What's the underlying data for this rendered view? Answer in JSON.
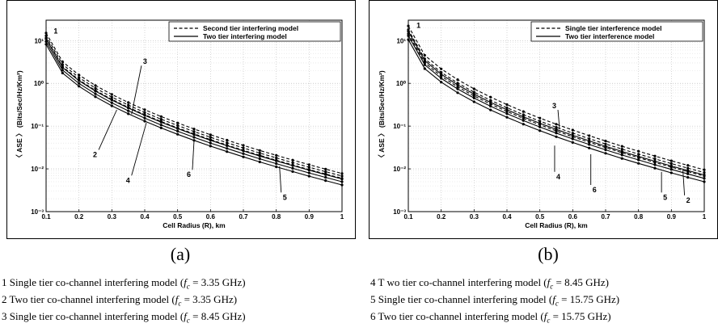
{
  "chart_data": [
    {
      "type": "line",
      "panel": "a",
      "caption": "(a)",
      "xlabel": "Cell Radius (R), km",
      "ylabel": "〈 ASE 〉 (Bits/Sec/Hz/Km²)",
      "x_scale": "linear",
      "y_scale": "log",
      "xlim": [
        0.1,
        1
      ],
      "ylim": [
        0.001,
        30
      ],
      "x_ticks": [
        "0.1",
        "0.2",
        "0.3",
        "0.4",
        "0.5",
        "0.6",
        "0.7",
        "0.8",
        "0.9",
        "1"
      ],
      "y_ticks": [
        "10⁻³",
        "10⁻²",
        "10⁻¹",
        "10⁰",
        "10¹"
      ],
      "grid": true,
      "legend_position": "top-right",
      "legend": [
        {
          "label": "Second tier interfering model",
          "style": "dashed"
        },
        {
          "label": "Two tier interfering model",
          "style": "solid"
        }
      ],
      "x": [
        0.1,
        0.15,
        0.2,
        0.25,
        0.3,
        0.35,
        0.4,
        0.45,
        0.5,
        0.55,
        0.6,
        0.65,
        0.7,
        0.75,
        0.8,
        0.85,
        0.9,
        0.95,
        1.0
      ],
      "series": [
        {
          "style": "dashed",
          "y0": 15.0,
          "y1": 0.0078
        },
        {
          "style": "solid",
          "y0": 11.0,
          "y1": 0.0058
        },
        {
          "style": "dashed",
          "y0": 13.0,
          "y1": 0.0068
        },
        {
          "style": "solid",
          "y0": 9.5,
          "y1": 0.005
        },
        {
          "style": "dashed",
          "y0": 11.5,
          "y1": 0.006
        },
        {
          "style": "solid",
          "y0": 8.2,
          "y1": 0.0042
        }
      ],
      "curve_labels": [
        {
          "text": "1",
          "x": 0.115,
          "y": 13.5,
          "tx": 0.118,
          "ty": 13.5
        },
        {
          "text": "2",
          "x": 0.315,
          "y": 0.24,
          "tx": 0.26,
          "ty": 0.028
        },
        {
          "text": "3",
          "x": 0.36,
          "y": 0.19,
          "tx": 0.39,
          "ty": 2.6
        },
        {
          "text": "4",
          "x": 0.405,
          "y": 0.12,
          "tx": 0.36,
          "ty": 0.007
        },
        {
          "text": "6",
          "x": 0.55,
          "y": 0.046,
          "tx": 0.545,
          "ty": 0.0095
        },
        {
          "text": "5",
          "x": 0.81,
          "y": 0.0115,
          "tx": 0.815,
          "ty": 0.0028
        }
      ]
    },
    {
      "type": "line",
      "panel": "b",
      "caption": "(b)",
      "xlabel": "Cell Radius (R), km",
      "ylabel": "〈 ASE 〉 (Bits/Sec/Hz/Km²)",
      "x_scale": "linear",
      "y_scale": "log",
      "xlim": [
        0.1,
        1
      ],
      "ylim": [
        0.001,
        30
      ],
      "x_ticks": [
        "0.1",
        "0.2",
        "0.3",
        "0.4",
        "0.5",
        "0.6",
        "0.7",
        "0.8",
        "0.9",
        "1"
      ],
      "y_ticks": [
        "10⁻³",
        "10⁻²",
        "10⁻¹",
        "10⁰",
        "10¹"
      ],
      "grid": true,
      "legend_position": "top-right",
      "legend": [
        {
          "label": "Single tier interference model",
          "style": "dashed"
        },
        {
          "label": "Two tier interference model",
          "style": "solid"
        }
      ],
      "x": [
        0.1,
        0.15,
        0.2,
        0.25,
        0.3,
        0.35,
        0.4,
        0.45,
        0.5,
        0.55,
        0.6,
        0.65,
        0.7,
        0.75,
        0.8,
        0.85,
        0.9,
        0.95,
        1.0
      ],
      "series": [
        {
          "style": "dashed",
          "y0": 22.0,
          "y1": 0.0095
        },
        {
          "style": "solid",
          "y0": 16.5,
          "y1": 0.0072
        },
        {
          "style": "dashed",
          "y0": 18.0,
          "y1": 0.0082
        },
        {
          "style": "solid",
          "y0": 13.0,
          "y1": 0.006
        },
        {
          "style": "dashed",
          "y0": 14.5,
          "y1": 0.0068
        },
        {
          "style": "solid",
          "y0": 10.5,
          "y1": 0.005
        }
      ],
      "curve_labels": [
        {
          "text": "1",
          "x": 0.112,
          "y": 18.0,
          "tx": 0.12,
          "ty": 18.0
        },
        {
          "text": "3",
          "x": 0.56,
          "y": 0.085,
          "tx": 0.555,
          "ty": 0.24
        },
        {
          "text": "4",
          "x": 0.545,
          "y": 0.035,
          "tx": 0.545,
          "ty": 0.0085
        },
        {
          "text": "6",
          "x": 0.655,
          "y": 0.022,
          "tx": 0.655,
          "ty": 0.0042
        },
        {
          "text": "5",
          "x": 0.87,
          "y": 0.0085,
          "tx": 0.87,
          "ty": 0.0028
        },
        {
          "text": "2",
          "x": 0.935,
          "y": 0.0095,
          "tx": 0.94,
          "ty": 0.0024
        }
      ]
    }
  ],
  "notes_left": [
    {
      "pre": "1 Single tier co-channel interfering model (",
      "sym": "f",
      "sub": "c",
      "post": " = 3.35 GHz)"
    },
    {
      "pre": "2  Two tier co-channel interfering model (",
      "sym": "f",
      "sub": "c",
      "post": " = 3.35  GHz)"
    },
    {
      "pre": "3  Single tier co-channel interfering model (",
      "sym": "f",
      "sub": "c",
      "post": " = 8.45  GHz)"
    }
  ],
  "notes_right": [
    {
      "pre": "4 T wo tier co-channel interfering model (",
      "sym": "f",
      "sub": "c",
      "post": " = 8.45  GHz)"
    },
    {
      "pre": "5  Single tier co-channel interfering model (",
      "sym": "f",
      "sub": "c",
      "post": " = 15.75  GHz)"
    },
    {
      "pre": "6  Two tier co-channel interfering model (",
      "sym": "f",
      "sub": "c",
      "post": " = 15.75  GHz)"
    }
  ]
}
